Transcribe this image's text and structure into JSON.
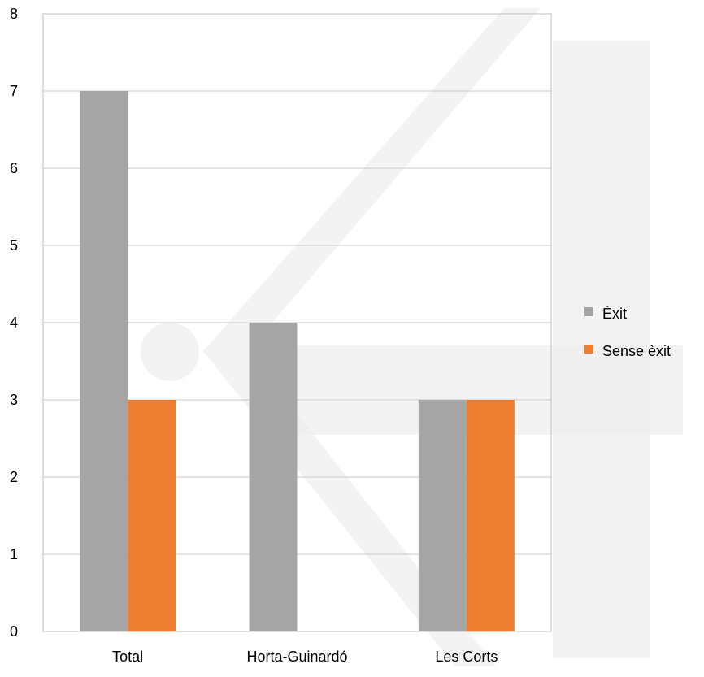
{
  "chart_data": {
    "type": "bar",
    "title": "",
    "xlabel": "",
    "ylabel": "",
    "categories": [
      "Total",
      "Horta-Guinardó",
      "Les Corts"
    ],
    "series": [
      {
        "name": "Èxit",
        "color": "#a5a5a5",
        "values": [
          7,
          4,
          3
        ]
      },
      {
        "name": "Sense èxit",
        "color": "#ed7d31",
        "values": [
          3,
          0,
          3
        ]
      }
    ],
    "ylim": [
      0,
      8
    ],
    "yticks": [
      "0",
      "1",
      "2",
      "3",
      "4",
      "5",
      "6",
      "7",
      "8"
    ],
    "grid": true,
    "legend_position": "right"
  }
}
